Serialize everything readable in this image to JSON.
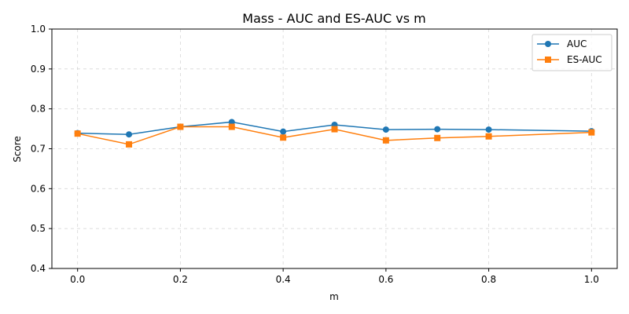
{
  "chart_data": {
    "type": "line",
    "title": "Mass - AUC and ES-AUC vs m",
    "xlabel": "m",
    "ylabel": "Score",
    "xlim": [
      -0.05,
      1.05
    ],
    "ylim": [
      0.4,
      1.0
    ],
    "xticks": [
      "0.0",
      "0.2",
      "0.4",
      "0.6",
      "0.8",
      "1.0"
    ],
    "xtick_values": [
      0.0,
      0.2,
      0.4,
      0.6,
      0.8,
      1.0
    ],
    "yticks": [
      "0.4",
      "0.5",
      "0.6",
      "0.7",
      "0.8",
      "0.9",
      "1.0"
    ],
    "ytick_values": [
      0.4,
      0.5,
      0.6,
      0.7,
      0.8,
      0.9,
      1.0
    ],
    "grid": true,
    "legend_position": "top-right",
    "x": [
      0.0,
      0.1,
      0.2,
      0.3,
      0.4,
      0.5,
      0.6,
      0.7,
      0.8,
      1.0
    ],
    "series": [
      {
        "name": "AUC",
        "color": "#1f77b4",
        "marker": "circle",
        "values": [
          0.739,
          0.736,
          0.755,
          0.767,
          0.743,
          0.76,
          0.748,
          0.749,
          0.748,
          0.744
        ]
      },
      {
        "name": "ES-AUC",
        "color": "#ff7f0e",
        "marker": "square",
        "values": [
          0.738,
          0.711,
          0.755,
          0.755,
          0.728,
          0.749,
          0.721,
          0.727,
          0.731,
          0.741
        ]
      }
    ]
  }
}
